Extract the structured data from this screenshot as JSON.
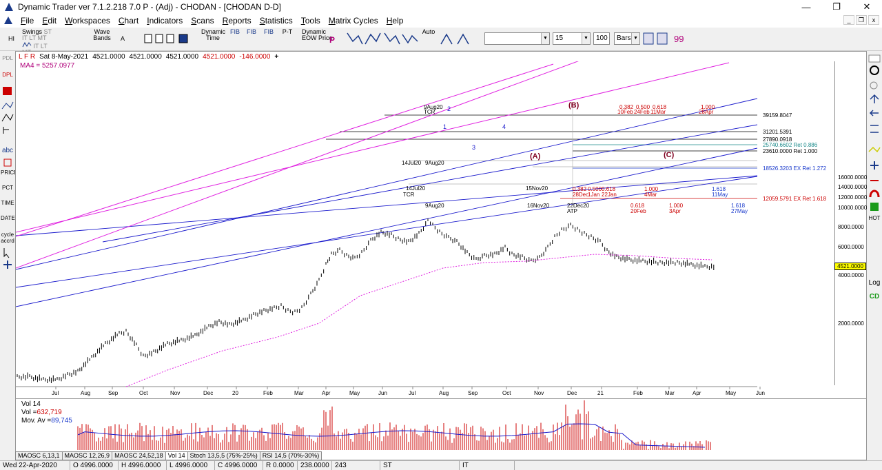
{
  "window": {
    "title": "Dynamic Trader ver 7.1.2.218 7.0 P - (Adj) - CHODAN - [CHODAN D-D]",
    "minimize": "—",
    "restore": "❐",
    "close": "✕"
  },
  "menu": [
    "File",
    "Edit",
    "Workspaces",
    "Chart",
    "Indicators",
    "Scans",
    "Reports",
    "Statistics",
    "Tools",
    "Matrix Cycles",
    "Help"
  ],
  "mdi_controls": [
    "_",
    "❐",
    "x"
  ],
  "toolbar": {
    "hi": "HI",
    "swings": "Swings",
    "swings_sub": "ST IT LT MT",
    "swings_sub2": "IT LT MT",
    "wave_bands": "Wave Bands",
    "a": "A",
    "dynamic_time": "Dynamic Time",
    "fib1": "FIB",
    "fib2": "FIB",
    "fib3": "FIB",
    "pt": "P-T",
    "dynamic_eow": "Dynamic EOW Price",
    "p": "P",
    "auto": "Auto",
    "combo1": "",
    "combo2": "15",
    "combo3": "100",
    "combo4": "Bars"
  },
  "left_tools": [
    "PDL",
    "DPL",
    "abc",
    "PRICE",
    "PCT",
    "TIME",
    "DATE",
    "cycle accrd"
  ],
  "right_tools": [
    "Log",
    "CD",
    "HOT"
  ],
  "infobar": {
    "markers": "L F R",
    "date": "Sat 8-May-2021",
    "open": "4521.0000",
    "high": "4521.0000",
    "low": "4521.0000",
    "close": "4521.0000",
    "change": "-146.0000",
    "ma": "MA4 = 5257.0977"
  },
  "chart_data": {
    "type": "ohlc-bars",
    "symbol": "CHODAN",
    "price_axis": [
      "16000.0000",
      "14000.0000",
      "12000.0000",
      "10000.0000",
      "8000.0000",
      "6000.0000",
      "4000.0000",
      "2000.0000"
    ],
    "last_price": "4521.0000",
    "x_axis": [
      "Jul",
      "Aug",
      "Sep",
      "Oct",
      "Nov",
      "Dec",
      "20",
      "Feb",
      "Mar",
      "Apr",
      "May",
      "Jun",
      "Jul",
      "Aug",
      "Sep",
      "Oct",
      "Nov",
      "Dec",
      "21",
      "Feb",
      "Mar",
      "Apr",
      "May",
      "Jun"
    ],
    "levels": [
      {
        "value": "39159.8047",
        "label": ""
      },
      {
        "value": "31201.5391",
        "label": ""
      },
      {
        "value": "27890.0918",
        "label": ""
      },
      {
        "value": "25740.6602",
        "label": "Ret 0.886"
      },
      {
        "value": "23610.0000",
        "label": "Ret 1.000"
      },
      {
        "value": "18526.3203",
        "label": "EX Ret 1.272"
      },
      {
        "value": "12059.5791",
        "label": "EX Ret 1.618"
      }
    ],
    "wave_labels": [
      "(B)",
      "(A)",
      "(C)"
    ],
    "date_labels": [
      "9Aug20",
      "14Jul20",
      "9Aug20",
      "14Jul20",
      "9Aug20",
      "15Nov20",
      "16Nov20",
      "22Dec20"
    ],
    "tcr": [
      "TCR",
      "TCR"
    ],
    "atp": "ATP",
    "ratios_top": [
      "0.382",
      "0.500",
      "0.618",
      "1.000"
    ],
    "dates_top": [
      "10Feb",
      "24Feb",
      "11Mar",
      "28Apr"
    ],
    "ratios_mid": [
      "0.382",
      "0.500",
      "0.618",
      "1.000",
      "1.618"
    ],
    "dates_mid": [
      "28Dec",
      "1Jan",
      "22Jan",
      "4Mar",
      "11May"
    ],
    "ratios_low": [
      "0.618",
      "1.000",
      "1.618"
    ],
    "dates_low": [
      "20Feb",
      "3Apr",
      "27May"
    ],
    "channel_labels": [
      "1",
      "2",
      "3",
      "4"
    ]
  },
  "volume": {
    "title": "Vol 14",
    "vol_label": "Vol =",
    "vol_value": "632,719",
    "mov_label": "Mov. Av =",
    "mov_value": "89,745"
  },
  "tabs": [
    "MAOSC 6,13,1",
    "MAOSC 12,26,9",
    "MAOSC 24,52,18",
    "Vol 14",
    "Stoch 13,5,5 (75%-25%)",
    "RSI 14,5 (70%-30%)"
  ],
  "status": {
    "date": "Wed 22-Apr-2020",
    "o": "O 4996.0000",
    "h": "H 4996.0000",
    "l": "L 4996.0000",
    "c": "C 4996.0000",
    "r": "R 0.0000",
    "v": "238.0000",
    "n": "243",
    "st": "ST",
    "it": "IT"
  }
}
